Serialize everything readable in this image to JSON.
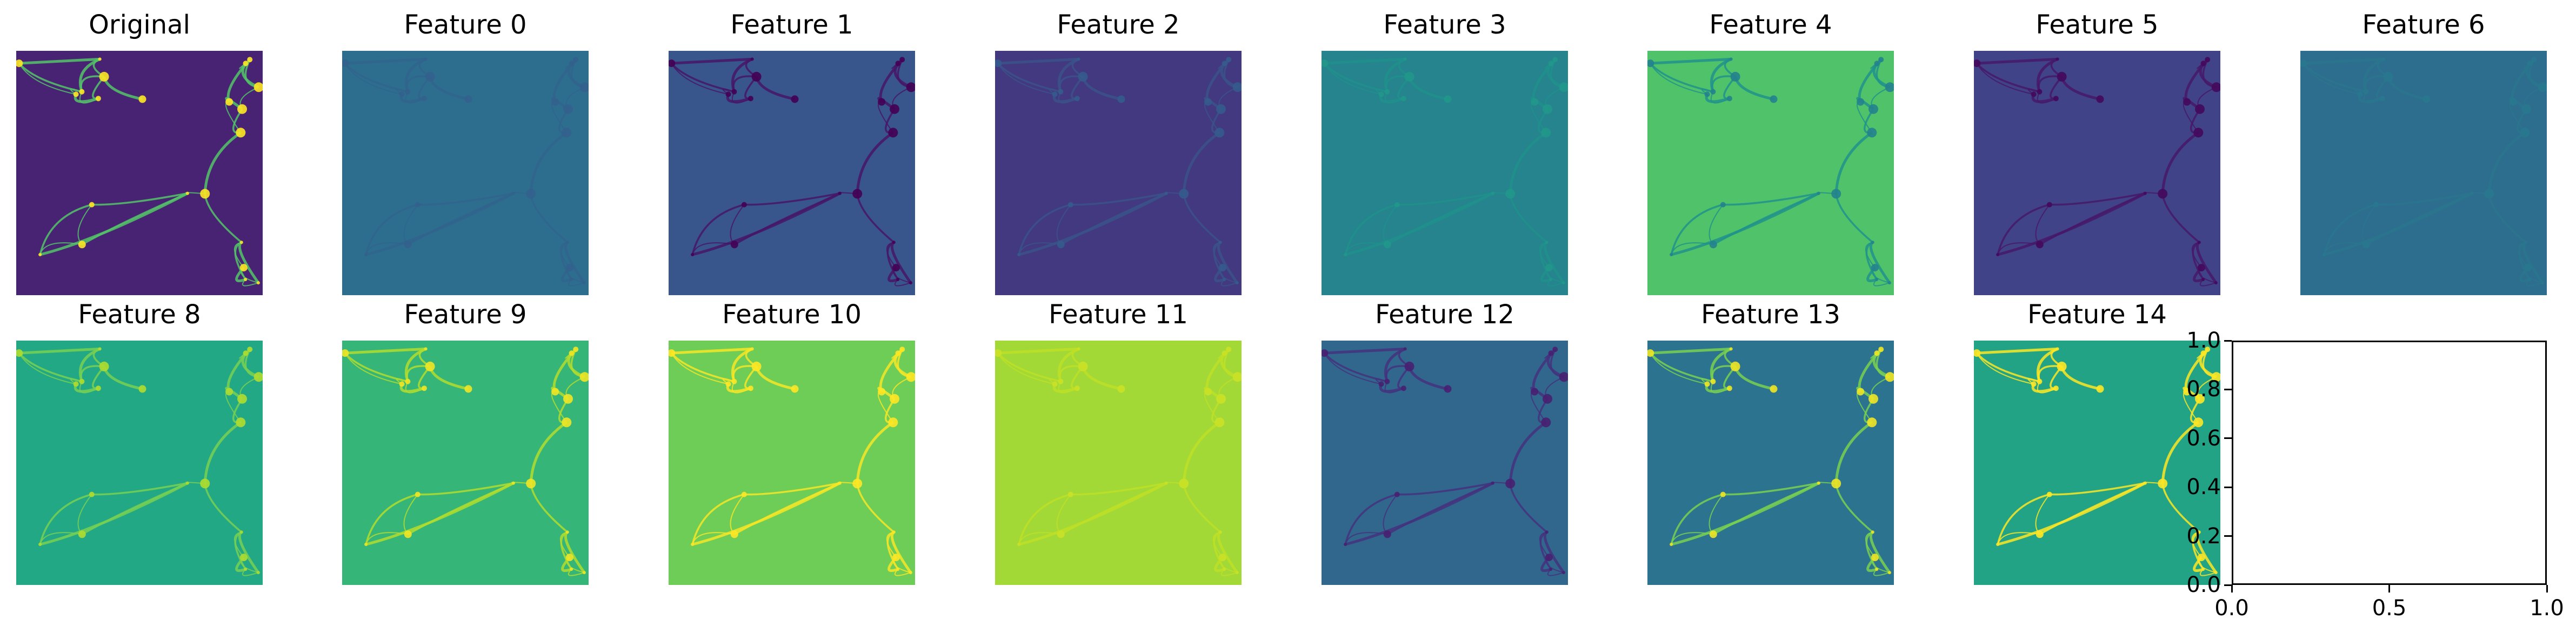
{
  "chart_data": {
    "type": "heatmap",
    "panels": [
      {
        "title": "Original",
        "cmap": "viridis",
        "tone": 0.1,
        "contrast": 0.9
      },
      {
        "title": "Feature 0",
        "cmap": "viridis",
        "tone": 0.36,
        "contrast": 0.06
      },
      {
        "title": "Feature 1",
        "cmap": "viridis",
        "tone": 0.27,
        "contrast": 0.35
      },
      {
        "title": "Feature 2",
        "cmap": "viridis",
        "tone": 0.17,
        "contrast": 0.12
      },
      {
        "title": "Feature 3",
        "cmap": "viridis",
        "tone": 0.45,
        "contrast": 0.08
      },
      {
        "title": "Feature 4",
        "cmap": "viridis",
        "tone": 0.72,
        "contrast": 0.35
      },
      {
        "title": "Feature 5",
        "cmap": "viridis",
        "tone": 0.2,
        "contrast": 0.22
      },
      {
        "title": "Feature 6",
        "cmap": "viridis",
        "tone": 0.36,
        "contrast": 0.04
      },
      {
        "title": "Feature 8",
        "cmap": "viridis",
        "tone": 0.6,
        "contrast": 0.28
      },
      {
        "title": "Feature 9",
        "cmap": "viridis",
        "tone": 0.66,
        "contrast": 0.32
      },
      {
        "title": "Feature 10",
        "cmap": "viridis",
        "tone": 0.78,
        "contrast": 0.3
      },
      {
        "title": "Feature 11",
        "cmap": "viridis",
        "tone": 0.86,
        "contrast": 0.06
      },
      {
        "title": "Feature 12",
        "cmap": "viridis",
        "tone": 0.33,
        "contrast": 0.3
      },
      {
        "title": "Feature 13",
        "cmap": "viridis",
        "tone": 0.38,
        "contrast": 0.6
      },
      {
        "title": "Feature 14",
        "cmap": "viridis",
        "tone": 0.58,
        "contrast": 0.7
      }
    ],
    "empty_axes": {
      "xlim": [
        0.0,
        1.0
      ],
      "ylim": [
        0.0,
        1.0
      ],
      "xticks": [
        "0.0",
        "0.5",
        "1.0"
      ],
      "yticks": [
        "0.0",
        "0.2",
        "0.4",
        "0.6",
        "0.8",
        "1.0"
      ]
    },
    "grid": false
  }
}
